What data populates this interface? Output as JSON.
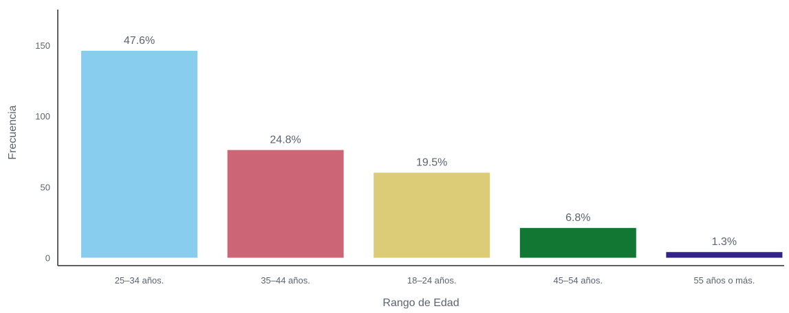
{
  "chart_data": {
    "type": "bar",
    "title": "",
    "xlabel": "Rango de Edad",
    "ylabel": "Frecuencia",
    "categories": [
      "25–34 años.",
      "35–44 años.",
      "18–24 años.",
      "45–54 años.",
      "55 años o más."
    ],
    "values": [
      146,
      76,
      60,
      21,
      4
    ],
    "data_labels": [
      "47.6%",
      "24.8%",
      "19.5%",
      "6.8%",
      "1.3%"
    ],
    "colors": [
      "#88ccee",
      "#cc6677",
      "#ddcc77",
      "#117733",
      "#332288"
    ],
    "ylim": [
      0,
      170
    ],
    "yticks": [
      0,
      50,
      100,
      150
    ],
    "grid": false,
    "legend": "none"
  }
}
